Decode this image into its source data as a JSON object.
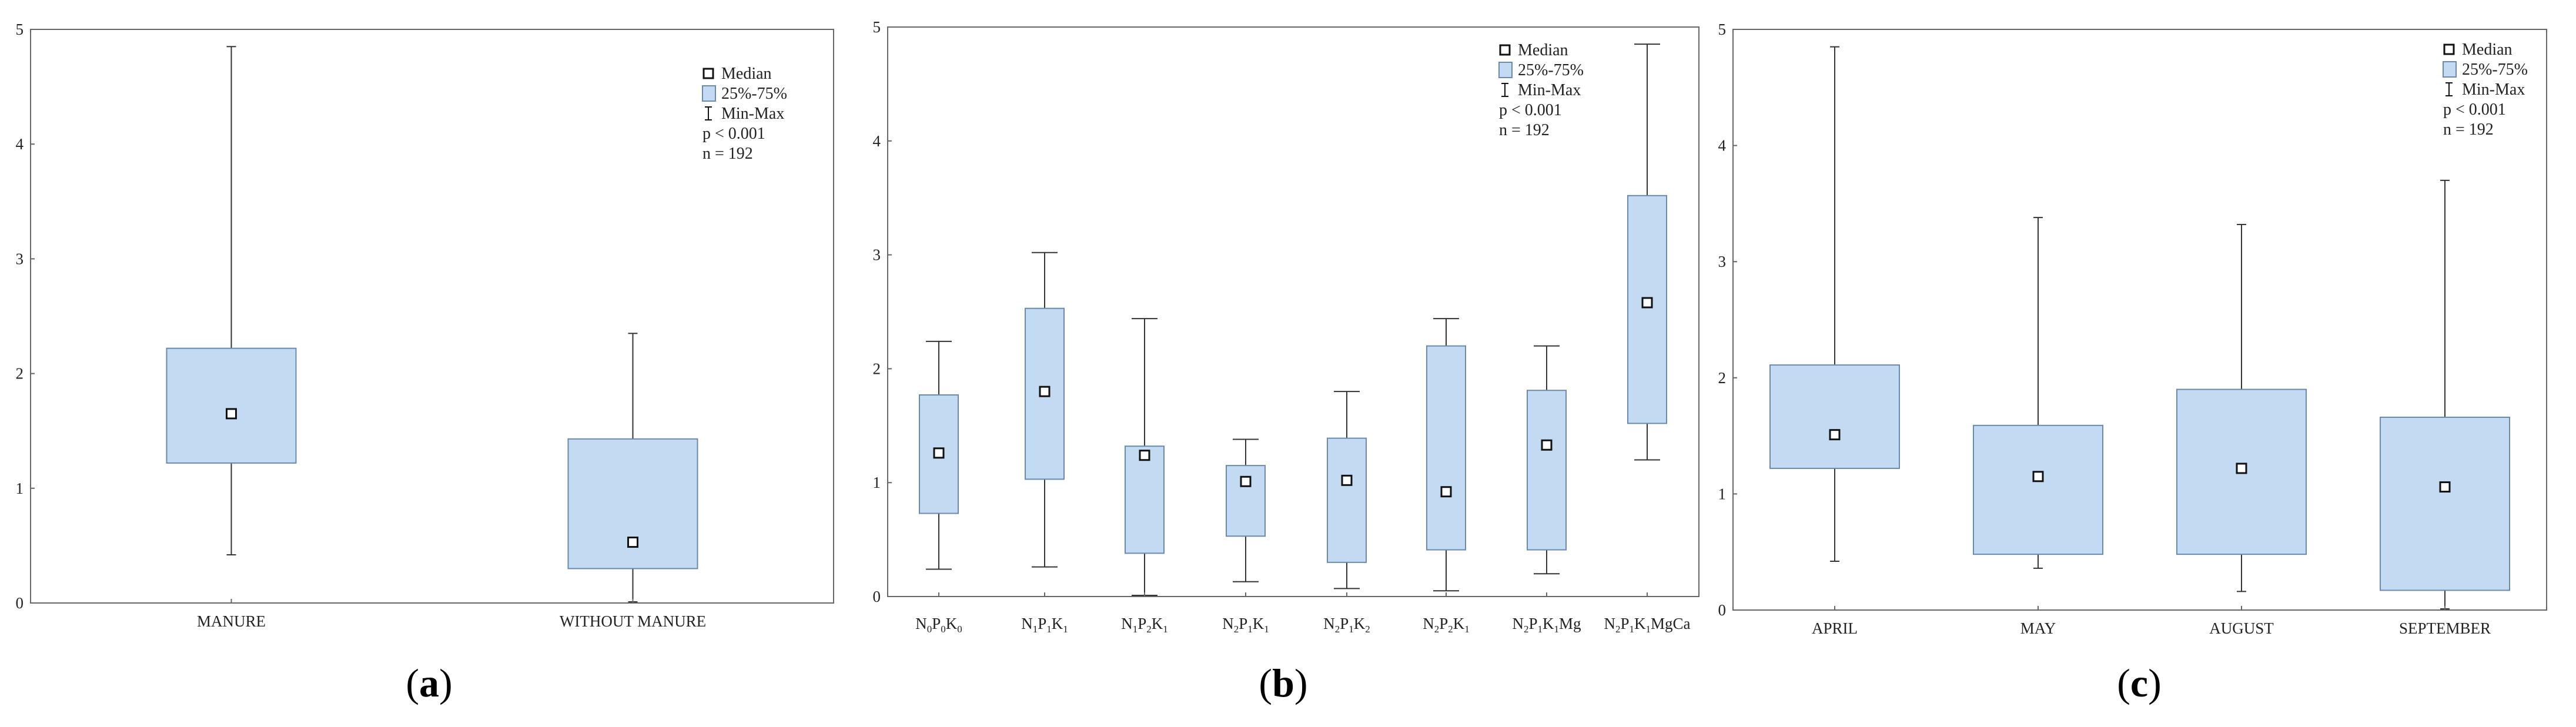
{
  "legend": {
    "median": "Median",
    "iqr": "25%-75%",
    "minmax": "Min-Max",
    "p_value": "p < 0.001",
    "n": "n = 192"
  },
  "colors": {
    "box_fill": "#c3dbf2",
    "box_stroke": "#6b89ad",
    "line": "#333333",
    "frame": "#666666"
  },
  "chart_data": [
    {
      "type": "boxplot",
      "label": "(a)",
      "ylim": [
        0,
        5
      ],
      "yticks": [
        "0",
        "1",
        "2",
        "3",
        "4",
        "5"
      ],
      "categories": [
        "MANURE",
        "WITHOUT MANURE"
      ],
      "series": [
        {
          "name": "MANURE",
          "min": 0.42,
          "q1": 1.22,
          "median": 1.65,
          "q3": 2.22,
          "max": 4.85
        },
        {
          "name": "WITHOUT MANURE",
          "min": 0.01,
          "q1": 0.3,
          "median": 0.53,
          "q3": 1.43,
          "max": 2.35
        }
      ]
    },
    {
      "type": "boxplot",
      "label": "(b)",
      "ylim": [
        0,
        5
      ],
      "yticks": [
        "0",
        "1",
        "2",
        "3",
        "4",
        "5"
      ],
      "categories": [
        [
          "N",
          "0",
          "P",
          "0",
          "K",
          "0",
          ""
        ],
        [
          "N",
          "1",
          "P",
          "1",
          "K",
          "1",
          ""
        ],
        [
          "N",
          "1",
          "P",
          "2",
          "K",
          "1",
          ""
        ],
        [
          "N",
          "2",
          "P",
          "1",
          "K",
          "1",
          ""
        ],
        [
          "N",
          "2",
          "P",
          "1",
          "K",
          "2",
          ""
        ],
        [
          "N",
          "2",
          "P",
          "2",
          "K",
          "1",
          ""
        ],
        [
          "N",
          "2",
          "P",
          "1",
          "K",
          "1",
          "Mg"
        ],
        [
          "N",
          "2",
          "P",
          "1",
          "K",
          "1",
          "MgCa"
        ]
      ],
      "series": [
        {
          "name": "N0P0K0",
          "min": 0.24,
          "q1": 0.73,
          "median": 1.26,
          "q3": 1.77,
          "max": 2.24
        },
        {
          "name": "N1P1K1",
          "min": 0.26,
          "q1": 1.03,
          "median": 1.8,
          "q3": 2.53,
          "max": 3.02
        },
        {
          "name": "N1P2K1",
          "min": 0.01,
          "q1": 0.38,
          "median": 1.24,
          "q3": 1.32,
          "max": 2.44
        },
        {
          "name": "N2P1K1",
          "min": 0.13,
          "q1": 0.53,
          "median": 1.01,
          "q3": 1.15,
          "max": 1.38
        },
        {
          "name": "N2P1K2",
          "min": 0.07,
          "q1": 0.3,
          "median": 1.02,
          "q3": 1.39,
          "max": 1.8
        },
        {
          "name": "N2P2K1",
          "min": 0.05,
          "q1": 0.41,
          "median": 0.92,
          "q3": 2.2,
          "max": 2.44
        },
        {
          "name": "N2P1K1Mg",
          "min": 0.2,
          "q1": 0.41,
          "median": 1.33,
          "q3": 1.81,
          "max": 2.2
        },
        {
          "name": "N2P1K1MgCa",
          "min": 1.2,
          "q1": 1.52,
          "median": 2.58,
          "q3": 3.52,
          "max": 4.85
        }
      ]
    },
    {
      "type": "boxplot",
      "label": "(c)",
      "ylim": [
        0,
        5
      ],
      "yticks": [
        "0",
        "1",
        "2",
        "3",
        "4",
        "5"
      ],
      "categories": [
        "APRIL",
        "MAY",
        "AUGUST",
        "SEPTEMBER"
      ],
      "series": [
        {
          "name": "APRIL",
          "min": 0.42,
          "q1": 1.22,
          "median": 1.51,
          "q3": 2.11,
          "max": 4.85
        },
        {
          "name": "MAY",
          "min": 0.36,
          "q1": 0.48,
          "median": 1.15,
          "q3": 1.59,
          "max": 3.38
        },
        {
          "name": "AUGUST",
          "min": 0.16,
          "q1": 0.48,
          "median": 1.22,
          "q3": 1.9,
          "max": 3.32
        },
        {
          "name": "SEPTEMBER",
          "min": 0.01,
          "q1": 0.17,
          "median": 1.06,
          "q3": 1.66,
          "max": 3.7
        }
      ]
    }
  ]
}
